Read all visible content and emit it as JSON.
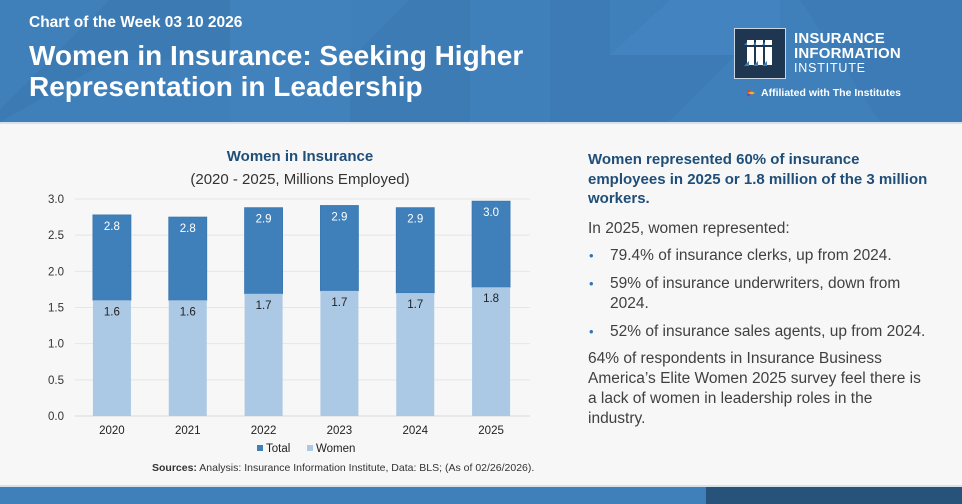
{
  "header": {
    "kicker": "Chart of the Week 03 10 2026",
    "title": "Women in Insurance: Seeking Higher Representation in Leadership",
    "brand_line1": "INSURANCE",
    "brand_line2": "INFORMATION",
    "brand_line3": "INSTITUTE",
    "affiliation": "Affiliated with The Institutes",
    "logo_icon": "iii-logo-icon",
    "colors": {
      "banner": "#3f7fba",
      "logo_bg": "#1f3650"
    }
  },
  "chart_data": {
    "type": "bar",
    "title": "Women in Insurance",
    "subtitle": "(2020 - 2025, Millions Employed)",
    "xlabel": "",
    "ylabel": "",
    "ylim": [
      0,
      3.0
    ],
    "yticks": [
      "0.0",
      "0.5",
      "1.0",
      "1.5",
      "2.0",
      "2.5",
      "3.0"
    ],
    "grid": true,
    "legend_position": "bottom",
    "overlap": true,
    "categories": [
      "2020",
      "2021",
      "2022",
      "2023",
      "2024",
      "2025"
    ],
    "series": [
      {
        "name": "Total",
        "color": "#3f7fba",
        "values": [
          2.78,
          2.75,
          2.88,
          2.91,
          2.88,
          2.97
        ],
        "labels": [
          "2.8",
          "2.8",
          "2.9",
          "2.9",
          "2.9",
          "3.0"
        ]
      },
      {
        "name": "Women",
        "color": "#abc9e4",
        "values": [
          1.6,
          1.6,
          1.69,
          1.73,
          1.7,
          1.78
        ],
        "labels": [
          "1.6",
          "1.6",
          "1.7",
          "1.7",
          "1.7",
          "1.8"
        ]
      }
    ]
  },
  "sources": {
    "label": "Sources:",
    "text": " Analysis: Insurance Information Institute, Data: BLS; (As of 02/26/2026)."
  },
  "panel": {
    "lead": "Women represented 60% of insurance employees in 2025 or 1.8 million of the 3 million workers.",
    "intro": "In 2025, women represented:",
    "bullets": [
      "79.4% of insurance clerks, up from 2024.",
      "59% of insurance underwriters, down from 2024.",
      "52% of insurance sales agents, up from 2024."
    ],
    "closing": "64% of respondents in Insurance Business America’s Elite Women 2025 survey feel there is a lack of women in leadership roles in the industry."
  }
}
